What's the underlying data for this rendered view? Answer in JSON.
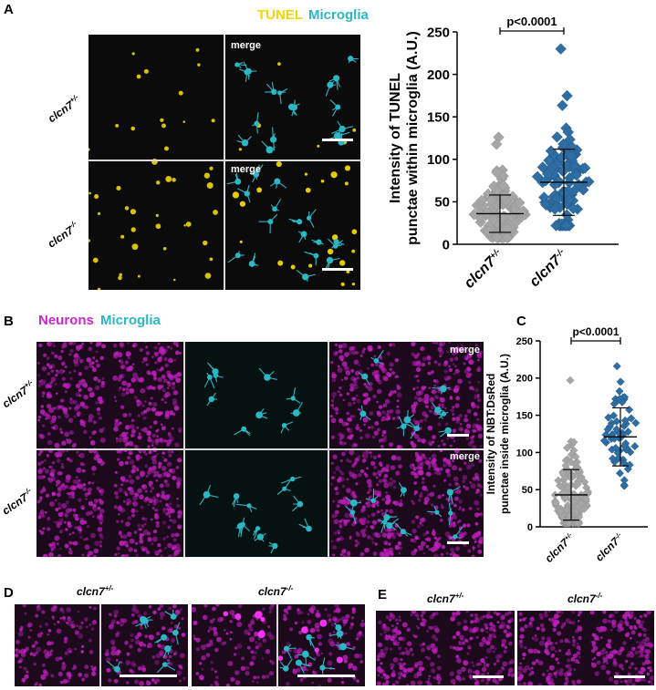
{
  "panels": {
    "A": "A",
    "B": "B",
    "C": "C",
    "D": "D",
    "E": "E"
  },
  "colors": {
    "tunel": "#f2d600",
    "microglia": "#2cb7c4",
    "neurons": "#cc27c9",
    "control_points": "#a6a6a6",
    "mutant_points": "#2e6ea3"
  },
  "panel_a": {
    "legend_tunel": "TUNEL",
    "legend_microglia": "Microglia",
    "merge_top": "merge",
    "merge_bottom": "merge",
    "row_labels": [
      "clcn7+/-",
      "clcn7-/-"
    ]
  },
  "panel_b": {
    "legend_neurons": "Neurons",
    "legend_microglia": "Microglia",
    "merge_top": "merge",
    "merge_bottom": "merge",
    "row_labels": [
      "clcn7+/-",
      "clcn7-/-"
    ]
  },
  "panel_d": {
    "labels": [
      "clcn7+/-",
      "clcn7-/-"
    ]
  },
  "panel_e": {
    "labels": [
      "clcn7+/-",
      "clcn7-/-"
    ]
  },
  "chart_data": [
    {
      "type": "scatter",
      "panel": "A",
      "ylabel": "Intensity of TUNEL punctae within microglia (A.U.)",
      "ylim": [
        0,
        250
      ],
      "yticks": [
        0,
        50,
        100,
        150,
        200,
        250
      ],
      "categories": [
        "clcn7+/-",
        "clcn7-/-"
      ],
      "significance": "p<0.0001",
      "series": [
        {
          "name": "clcn7+/-",
          "mean": 36,
          "sd_upper": 58,
          "sd_lower": 14,
          "min": 8,
          "max": 126,
          "n_points": 150
        },
        {
          "name": "clcn7-/-",
          "mean": 73,
          "sd_upper": 112,
          "sd_lower": 34,
          "min": 22,
          "max": 230,
          "n_points": 110
        }
      ]
    },
    {
      "type": "scatter",
      "panel": "C",
      "ylabel": "Intensity of NBT:DsRed punctae inside microglia (A.U.)",
      "ylim": [
        0,
        250
      ],
      "yticks": [
        0,
        50,
        100,
        150,
        200,
        250
      ],
      "categories": [
        "clcn7+/-",
        "clcn7-/-"
      ],
      "significance": "p<0.0001",
      "series": [
        {
          "name": "clcn7+/-",
          "mean": 43,
          "sd_upper": 77,
          "sd_lower": 9,
          "min": 5,
          "max": 197,
          "n_points": 130
        },
        {
          "name": "clcn7-/-",
          "mean": 121,
          "sd_upper": 160,
          "sd_lower": 82,
          "min": 55,
          "max": 216,
          "n_points": 60
        }
      ]
    }
  ]
}
